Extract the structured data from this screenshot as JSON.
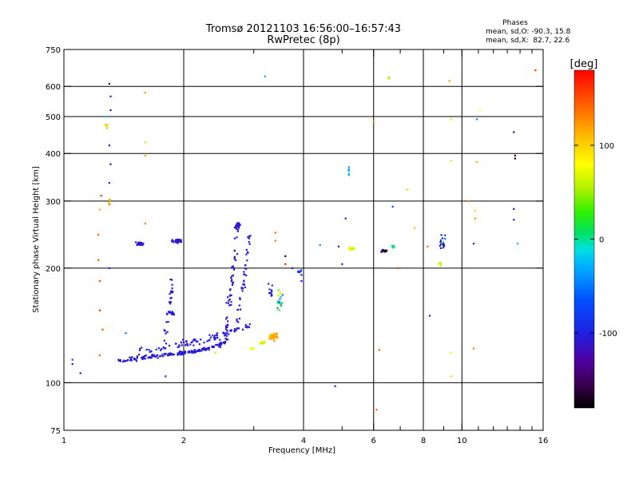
{
  "chart_data": {
    "type": "scatter",
    "title": "Tromsø 20121103 16:56:00–16:57:43",
    "subtitle": "RwPretec (8p)",
    "xlabel": "Frequency [MHz]",
    "ylabel": "Stationary phase Virtual Height [km]",
    "x_scale": "log",
    "y_scale": "log",
    "xlim": [
      1,
      16
    ],
    "ylim": [
      75,
      750
    ],
    "x_ticks": [
      1,
      2,
      4,
      6,
      8,
      10,
      16
    ],
    "x_tick_labels": [
      "1",
      "2",
      "4",
      "6",
      "8",
      "10",
      "16"
    ],
    "x_minor_ticks": [
      3,
      5,
      7,
      9,
      11,
      12,
      13,
      14,
      15
    ],
    "y_ticks": [
      75,
      100,
      200,
      300,
      400,
      500,
      600,
      750
    ],
    "y_tick_labels": [
      "75",
      "100",
      "200",
      "300",
      "400",
      "500",
      "600",
      "750"
    ],
    "grid": true,
    "stats": {
      "title": "Phases",
      "line1": "mean, sd,O: -90.3, 15.8",
      "line2": "mean, sd,X:  82.7, 22.6"
    },
    "colorbar": {
      "label": "[deg]",
      "range": [
        -180,
        180
      ],
      "ticks": [
        100,
        0,
        -100
      ],
      "tick_labels": [
        "100",
        "0",
        "-100"
      ]
    },
    "clusters": [
      {
        "kind": "curve",
        "pts": [
          [
            1.37,
            114
          ],
          [
            1.45,
            115
          ],
          [
            1.55,
            116
          ],
          [
            1.65,
            117
          ],
          [
            1.75,
            118
          ],
          [
            1.85,
            119
          ],
          [
            1.95,
            119.5
          ],
          [
            2.05,
            120
          ],
          [
            2.15,
            121
          ],
          [
            2.25,
            122.5
          ],
          [
            2.35,
            124
          ],
          [
            2.45,
            126
          ],
          [
            2.55,
            128
          ]
        ],
        "n": 170,
        "jx": 0.01,
        "jy": 0.01,
        "phase": -105,
        "ps": 6
      },
      {
        "kind": "curve",
        "pts": [
          [
            1.55,
            121
          ],
          [
            1.7,
            123
          ],
          [
            1.85,
            125
          ],
          [
            2.0,
            127
          ],
          [
            2.2,
            129
          ],
          [
            2.4,
            132
          ],
          [
            2.6,
            136
          ],
          [
            2.8,
            140
          ],
          [
            3.0,
            143
          ]
        ],
        "n": 90,
        "jx": 0.012,
        "jy": 0.018,
        "phase": -105,
        "ps": 7
      },
      {
        "kind": "curve",
        "pts": [
          [
            1.78,
            125
          ],
          [
            1.82,
            145
          ],
          [
            1.85,
            165
          ],
          [
            1.87,
            178
          ],
          [
            1.85,
            188
          ]
        ],
        "n": 28,
        "jx": 0.01,
        "jy": 0.012,
        "phase": -103,
        "ps": 5
      },
      {
        "kind": "curve",
        "pts": [
          [
            2.55,
            128
          ],
          [
            2.58,
            150
          ],
          [
            2.62,
            175
          ],
          [
            2.67,
            200
          ],
          [
            2.7,
            225
          ],
          [
            2.72,
            255
          ],
          [
            2.75,
            262
          ]
        ],
        "n": 75,
        "jx": 0.012,
        "jy": 0.015,
        "phase": -108,
        "ps": 6
      },
      {
        "kind": "curve",
        "pts": [
          [
            2.72,
            140
          ],
          [
            2.78,
            165
          ],
          [
            2.85,
            195
          ],
          [
            2.9,
            225
          ],
          [
            2.92,
            245
          ]
        ],
        "n": 40,
        "jx": 0.01,
        "jy": 0.015,
        "phase": -105,
        "ps": 6
      },
      {
        "kind": "cloud",
        "x": 1.88,
        "y": 152,
        "n": 14,
        "jx": 0.01,
        "jy": 0.008,
        "phase": -105,
        "ps": 4
      },
      {
        "kind": "cloud",
        "x": 1.55,
        "y": 232,
        "n": 28,
        "jx": 0.018,
        "jy": 0.01,
        "phase": -108,
        "ps": 5
      },
      {
        "kind": "cloud",
        "x": 1.92,
        "y": 235,
        "n": 30,
        "jx": 0.02,
        "jy": 0.01,
        "phase": -108,
        "ps": 5
      },
      {
        "kind": "cloud",
        "x": 3.35,
        "y": 132,
        "n": 50,
        "jx": 0.025,
        "jy": 0.018,
        "phase": 115,
        "ps": 10
      },
      {
        "kind": "cloud",
        "x": 3.15,
        "y": 127,
        "n": 14,
        "jx": 0.015,
        "jy": 0.01,
        "phase": 60,
        "ps": 12
      },
      {
        "kind": "cloud",
        "x": 2.97,
        "y": 123,
        "n": 8,
        "jx": 0.01,
        "jy": 0.008,
        "phase": 85,
        "ps": 8
      },
      {
        "kind": "cloud",
        "x": 3.48,
        "y": 165,
        "n": 22,
        "jx": 0.018,
        "jy": 0.05,
        "phase": 30,
        "ps": 70
      },
      {
        "kind": "cloud",
        "x": 3.3,
        "y": 175,
        "n": 10,
        "jx": 0.015,
        "jy": 0.04,
        "phase": -95,
        "ps": 20
      },
      {
        "kind": "cloud",
        "x": 3.9,
        "y": 196,
        "n": 8,
        "jx": 0.01,
        "jy": 0.008,
        "phase": -75,
        "ps": 10
      },
      {
        "kind": "cloud",
        "x": 5.3,
        "y": 225,
        "n": 20,
        "jx": 0.018,
        "jy": 0.008,
        "phase": 65,
        "ps": 20
      },
      {
        "kind": "cloud",
        "x": 6.35,
        "y": 222,
        "n": 16,
        "jx": 0.015,
        "jy": 0.006,
        "phase": -160,
        "ps": 50
      },
      {
        "kind": "cloud",
        "x": 6.7,
        "y": 228,
        "n": 7,
        "jx": 0.01,
        "jy": 0.01,
        "phase": 0,
        "ps": 25
      },
      {
        "kind": "cloud",
        "x": 5.2,
        "y": 358,
        "n": 6,
        "jx": 0.002,
        "jy": 0.025,
        "phase": -30,
        "ps": 8
      },
      {
        "kind": "cloud",
        "x": 6.55,
        "y": 632,
        "n": 5,
        "jx": 0.002,
        "jy": 0.01,
        "phase": 60,
        "ps": 30
      },
      {
        "kind": "cloud",
        "x": 8.95,
        "y": 235,
        "n": 16,
        "jx": 0.015,
        "jy": 0.03,
        "phase": -100,
        "ps": 60
      },
      {
        "kind": "cloud",
        "x": 8.8,
        "y": 205,
        "n": 6,
        "jx": 0.008,
        "jy": 0.01,
        "phase": 70,
        "ps": 15
      },
      {
        "kind": "cloud",
        "x": 1.28,
        "y": 470,
        "n": 8,
        "jx": 0.01,
        "jy": 0.018,
        "phase": 80,
        "ps": 30
      },
      {
        "kind": "cloud",
        "x": 1.3,
        "y": 300,
        "n": 8,
        "jx": 0.01,
        "jy": 0.02,
        "phase": 90,
        "ps": 50
      }
    ],
    "points": [
      [
        1.3,
        610,
        -150
      ],
      [
        1.31,
        565,
        -100
      ],
      [
        1.31,
        520,
        -110
      ],
      [
        1.3,
        420,
        -105
      ],
      [
        1.31,
        375,
        -110
      ],
      [
        1.3,
        335,
        -90
      ],
      [
        1.3,
        200,
        -100
      ],
      [
        1.27,
        500,
        -20
      ],
      [
        1.24,
        310,
        160
      ],
      [
        1.23,
        285,
        120
      ],
      [
        1.22,
        245,
        140
      ],
      [
        1.22,
        210,
        150
      ],
      [
        1.23,
        185,
        150
      ],
      [
        1.23,
        155,
        160
      ],
      [
        1.25,
        138,
        150
      ],
      [
        1.23,
        118,
        140
      ],
      [
        1.05,
        115,
        -70
      ],
      [
        1.05,
        112,
        -110
      ],
      [
        1.1,
        106,
        -100
      ],
      [
        1.6,
        578,
        120
      ],
      [
        1.6,
        428,
        60
      ],
      [
        1.6,
        395,
        120
      ],
      [
        1.6,
        262,
        130
      ],
      [
        1.43,
        135,
        -50
      ],
      [
        1.8,
        104,
        -90
      ],
      [
        3.2,
        638,
        -30
      ],
      [
        4.8,
        98,
        -110
      ],
      [
        5.1,
        270,
        -100
      ],
      [
        4.9,
        228,
        -110
      ],
      [
        4.4,
        230,
        -40
      ],
      [
        5.0,
        205,
        -90
      ],
      [
        6.0,
        485,
        120
      ],
      [
        6.1,
        85,
        140
      ],
      [
        6.2,
        122,
        140
      ],
      [
        6.7,
        290,
        -70
      ],
      [
        6.9,
        200,
        160
      ],
      [
        7.3,
        322,
        100
      ],
      [
        7.6,
        255,
        110
      ],
      [
        8.2,
        228,
        140
      ],
      [
        8.3,
        150,
        -90
      ],
      [
        9.3,
        620,
        120
      ],
      [
        9.4,
        492,
        90
      ],
      [
        9.4,
        383,
        60
      ],
      [
        9.4,
        120,
        80
      ],
      [
        9.4,
        104,
        100
      ],
      [
        10.8,
        283,
        100
      ],
      [
        10.8,
        270,
        120
      ],
      [
        10.7,
        123,
        130
      ],
      [
        10.4,
        300,
        130
      ],
      [
        10.9,
        380,
        110
      ],
      [
        11.1,
        520,
        80
      ],
      [
        10.9,
        492,
        -40
      ],
      [
        10.7,
        232,
        -110
      ],
      [
        13.5,
        455,
        -140
      ],
      [
        13.6,
        395,
        -150
      ],
      [
        13.6,
        388,
        -170
      ],
      [
        13.5,
        286,
        -130
      ],
      [
        13.5,
        268,
        -110
      ],
      [
        13.8,
        232,
        -20
      ],
      [
        15.3,
        662,
        160
      ],
      [
        3.75,
        200,
        -120
      ],
      [
        3.95,
        192,
        -110
      ],
      [
        3.95,
        185,
        -100
      ],
      [
        3.4,
        248,
        140
      ],
      [
        3.4,
        236,
        130
      ],
      [
        3.6,
        215,
        -170
      ],
      [
        3.6,
        205,
        170
      ],
      [
        2.4,
        120,
        60
      ]
    ]
  }
}
